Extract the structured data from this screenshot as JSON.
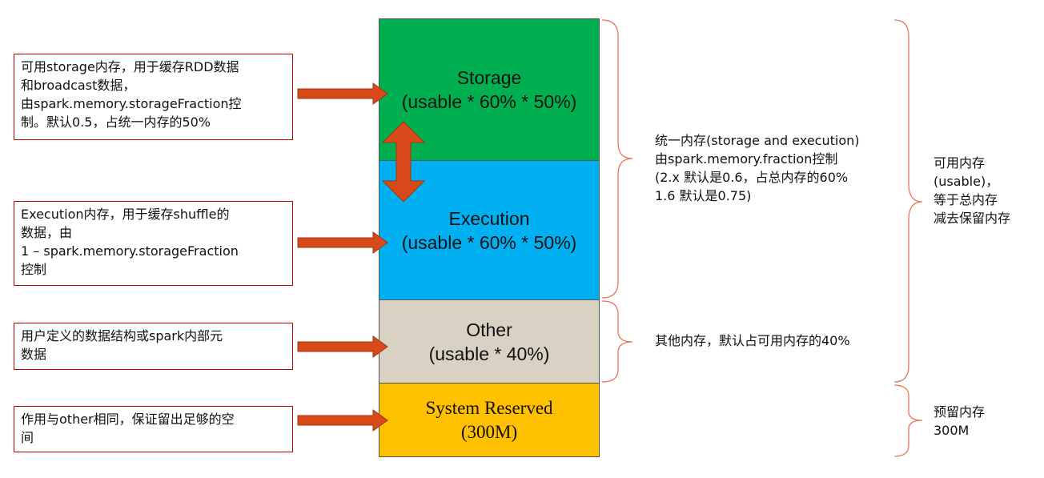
{
  "colors": {
    "storage": "#00b050",
    "execution": "#00b0f0",
    "other": "#d9d2c3",
    "reserved": "#ffc000",
    "arrow": "#d84a1a",
    "arrow_stroke": "#a0360f",
    "note_border": "#c00000",
    "brace": "#e8765a"
  },
  "blocks": {
    "storage": {
      "line1": "Storage",
      "line2": "(usable * 60% * 50%)"
    },
    "execution": {
      "line1": "Execution",
      "line2": "(usable * 60% * 50%)"
    },
    "other": {
      "line1": "Other",
      "line2": "(usable * 40%)"
    },
    "reserved": {
      "line1": "System Reserved",
      "line2": "(300M)"
    }
  },
  "notes": {
    "storage": "可用storage内存，用于缓存RDD数据\n和broadcast数据，\n由spark.memory.storageFraction控\n制。默认0.5，占统一内存的50%",
    "execution": "Execution内存，用于缓存shuffle的\n数据，由\n1 – spark.memory.storageFraction\n控制",
    "other": "用户定义的数据结构或spark内部元\n数据",
    "reserved": "作用与other相同，保证留出足够的空\n间"
  },
  "right_labels": {
    "unified": "统一内存(storage and execution)\n由spark.memory.fraction控制\n(2.x 默认是0.6，占总内存的60%\n1.6 默认是0.75)",
    "other": "其他内存，默认占可用内存的40%",
    "usable": "可用内存\n(usable)，\n等于总内存\n减去保留内存",
    "reserved": "预留内存\n300M"
  }
}
